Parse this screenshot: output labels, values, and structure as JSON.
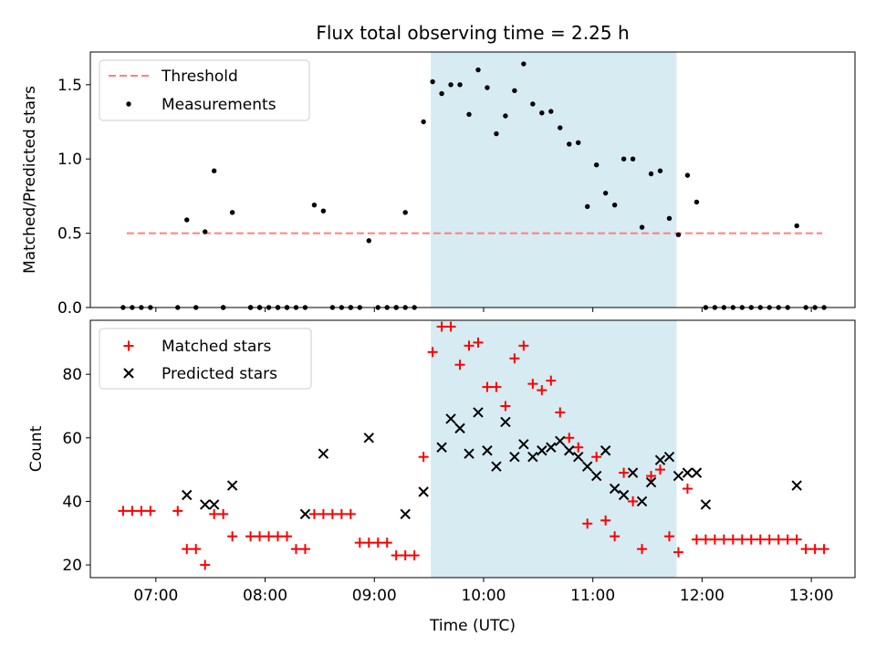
{
  "chart_data": [
    {
      "type": "scatter",
      "title": "Flux total observing time = 2.25 h",
      "xlabel": "",
      "ylabel": "Matched/Predicted stars",
      "xlim": [
        "06:24",
        "13:24"
      ],
      "ylim": [
        0,
        1.72
      ],
      "yticks": [
        0.0,
        0.5,
        1.0,
        1.5
      ],
      "ytick_labels": [
        "0.0",
        "0.5",
        "1.0",
        "1.5"
      ],
      "shaded_region": {
        "start": "09:31",
        "end": "11:46",
        "color": "#add8e6"
      },
      "threshold": {
        "name": "Threshold",
        "value": 0.5,
        "start": "06:44",
        "end": "13:06",
        "color": "#ff7f7f"
      },
      "legend": {
        "location": "upper-left",
        "entries": [
          "Threshold",
          "Measurements"
        ]
      },
      "series": [
        {
          "name": "Measurements",
          "color": "#000000",
          "x": [
            "06:42",
            "06:47",
            "06:52",
            "06:57",
            "07:12",
            "07:17",
            "07:22",
            "07:27",
            "07:32",
            "07:37",
            "07:42",
            "07:52",
            "07:57",
            "08:02",
            "08:07",
            "08:12",
            "08:17",
            "08:22",
            "08:27",
            "08:32",
            "08:37",
            "08:42",
            "08:47",
            "08:52",
            "08:57",
            "09:02",
            "09:07",
            "09:12",
            "09:17",
            "09:22",
            "09:27",
            "09:32",
            "09:37",
            "09:42",
            "09:47",
            "09:52",
            "09:57",
            "10:02",
            "10:07",
            "10:12",
            "10:17",
            "10:22",
            "10:27",
            "10:32",
            "10:37",
            "10:42",
            "10:47",
            "10:52",
            "10:57",
            "11:02",
            "11:07",
            "11:12",
            "11:17",
            "11:22",
            "11:27",
            "11:32",
            "11:37",
            "11:42",
            "11:47",
            "11:52",
            "11:57",
            "12:02",
            "12:07",
            "12:12",
            "12:17",
            "12:22",
            "12:27",
            "12:32",
            "12:37",
            "12:42",
            "12:47",
            "12:52",
            "12:57",
            "13:02",
            "13:07"
          ],
          "y": [
            0,
            0,
            0,
            0,
            0,
            0.59,
            0,
            0.51,
            0.92,
            0,
            0.64,
            0,
            0,
            0,
            0,
            0,
            0,
            0,
            0.69,
            0.65,
            0,
            0,
            0,
            0,
            0.45,
            0,
            0,
            0,
            0.64,
            0,
            1.25,
            1.52,
            1.44,
            1.5,
            1.5,
            1.3,
            1.6,
            1.48,
            1.17,
            1.29,
            1.46,
            1.64,
            1.37,
            1.31,
            1.32,
            1.21,
            1.1,
            1.11,
            0.68,
            0.96,
            0.77,
            0.69,
            1.0,
            1.0,
            0.54,
            0.9,
            0.92,
            0.6,
            0.49,
            0.89,
            0.71,
            0,
            0,
            0,
            0,
            0,
            0,
            0,
            0,
            0,
            0,
            0.55,
            0,
            0,
            0
          ],
          "x_extra": [
            "07:37",
            "07:52",
            "07:57",
            "08:07",
            "08:12",
            "08:47",
            "09:12",
            "09:17"
          ],
          "y_extra": [
            0,
            0,
            0,
            0,
            0,
            0,
            0,
            0
          ]
        }
      ]
    },
    {
      "type": "scatter",
      "title": "",
      "xlabel": "Time (UTC)",
      "ylabel": "Count",
      "xlim": [
        "06:24",
        "13:24"
      ],
      "ylim": [
        16,
        97
      ],
      "yticks": [
        20,
        40,
        60,
        80
      ],
      "ytick_labels": [
        "20",
        "40",
        "60",
        "80"
      ],
      "xticks": [
        "07:00",
        "08:00",
        "09:00",
        "10:00",
        "11:00",
        "12:00",
        "13:00"
      ],
      "xtick_labels": [
        "07:00",
        "08:00",
        "09:00",
        "10:00",
        "11:00",
        "12:00",
        "13:00"
      ],
      "shaded_region": {
        "start": "09:31",
        "end": "11:46",
        "color": "#add8e6"
      },
      "legend": {
        "location": "upper-left",
        "entries": [
          "Matched stars",
          "Predicted stars"
        ]
      },
      "series": [
        {
          "name": "Matched stars",
          "marker": "plus",
          "color": "#ff0000",
          "x": [
            "06:42",
            "06:47",
            "06:52",
            "06:57",
            "07:12",
            "07:17",
            "07:22",
            "07:27",
            "07:32",
            "07:37",
            "07:42",
            "07:52",
            "07:57",
            "08:02",
            "08:07",
            "08:12",
            "08:17",
            "08:22",
            "08:27",
            "08:32",
            "08:37",
            "08:42",
            "08:47",
            "08:52",
            "08:57",
            "09:02",
            "09:07",
            "09:12",
            "09:17",
            "09:22",
            "09:27",
            "09:32",
            "09:37",
            "09:42",
            "09:47",
            "09:52",
            "09:57",
            "10:02",
            "10:07",
            "10:12",
            "10:17",
            "10:22",
            "10:27",
            "10:32",
            "10:37",
            "10:42",
            "10:47",
            "10:52",
            "10:57",
            "11:02",
            "11:07",
            "11:12",
            "11:17",
            "11:22",
            "11:27",
            "11:32",
            "11:37",
            "11:42",
            "11:47",
            "11:52",
            "11:57",
            "12:02",
            "12:07",
            "12:12",
            "12:17",
            "12:22",
            "12:27",
            "12:32",
            "12:37",
            "12:42",
            "12:47",
            "12:52",
            "12:57",
            "13:02",
            "13:07"
          ],
          "y": [
            37,
            37,
            37,
            37,
            37,
            25,
            25,
            20,
            36,
            36,
            29,
            29,
            29,
            29,
            29,
            29,
            25,
            25,
            36,
            36,
            36,
            36,
            36,
            27,
            27,
            27,
            27,
            23,
            23,
            23,
            54,
            87,
            95,
            95,
            83,
            89,
            90,
            76,
            76,
            70,
            85,
            89,
            77,
            75,
            78,
            68,
            60,
            57,
            33,
            54,
            34,
            29,
            49,
            40,
            25,
            48,
            50,
            29,
            24,
            44,
            28,
            28,
            28,
            28,
            28,
            28,
            28,
            28,
            28,
            28,
            28,
            28,
            25,
            25,
            25
          ]
        },
        {
          "name": "Predicted stars",
          "marker": "x",
          "color": "#000000",
          "x": [
            "07:17",
            "07:27",
            "07:32",
            "07:42",
            "08:22",
            "08:32",
            "08:57",
            "09:17",
            "09:27",
            "09:37",
            "09:42",
            "09:47",
            "09:52",
            "09:57",
            "10:02",
            "10:07",
            "10:12",
            "10:17",
            "10:22",
            "10:27",
            "10:32",
            "10:37",
            "10:42",
            "10:47",
            "10:52",
            "10:57",
            "11:02",
            "11:07",
            "11:12",
            "11:17",
            "11:22",
            "11:27",
            "11:32",
            "11:37",
            "11:42",
            "11:47",
            "11:52",
            "11:57",
            "12:02",
            "12:52"
          ],
          "y": [
            42,
            39,
            39,
            45,
            36,
            55,
            60,
            36,
            43,
            57,
            66,
            63,
            55,
            68,
            56,
            51,
            65,
            54,
            58,
            54,
            56,
            57,
            59,
            56,
            54,
            51,
            48,
            56,
            44,
            42,
            49,
            40,
            46,
            53,
            54,
            48,
            49,
            49,
            39,
            45
          ]
        }
      ]
    }
  ]
}
